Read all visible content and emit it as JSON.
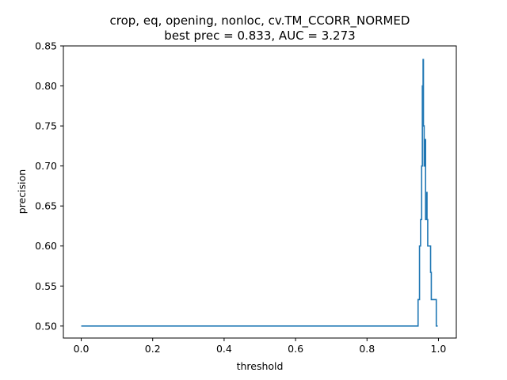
{
  "chart_data": {
    "type": "line",
    "title_lines": [
      "crop, eq, opening, nonloc, cv.TM_CCORR_NORMED",
      "best prec = 0.833, AUC = 3.273"
    ],
    "xlabel": "threshold",
    "ylabel": "precision",
    "xlim": [
      -0.05,
      1.05
    ],
    "ylim": [
      0.485,
      0.85
    ],
    "xticks": [
      0.0,
      0.2,
      0.4,
      0.6,
      0.8,
      1.0
    ],
    "xtick_labels": [
      "0.0",
      "0.2",
      "0.4",
      "0.6",
      "0.8",
      "1.0"
    ],
    "yticks": [
      0.5,
      0.55,
      0.6,
      0.65,
      0.7,
      0.75,
      0.8,
      0.85
    ],
    "ytick_labels": [
      "0.50",
      "0.55",
      "0.60",
      "0.65",
      "0.70",
      "0.75",
      "0.80",
      "0.85"
    ],
    "grid": false,
    "line_color": "#1f77b4",
    "series": [
      {
        "x": [
          0.0,
          0.943,
          0.943,
          0.947,
          0.947,
          0.95,
          0.95,
          0.953,
          0.953,
          0.955,
          0.955,
          0.957,
          0.957,
          0.958,
          0.958,
          0.96,
          0.96,
          0.962,
          0.962,
          0.964,
          0.964,
          0.966,
          0.966,
          0.968,
          0.968,
          0.97,
          0.97,
          0.974,
          0.974,
          0.978,
          0.978,
          0.98,
          0.98,
          0.982,
          0.982,
          0.99,
          0.99,
          0.994,
          0.994,
          0.998
        ],
        "y": [
          0.5,
          0.5,
          0.533,
          0.533,
          0.6,
          0.6,
          0.633,
          0.633,
          0.7,
          0.7,
          0.8,
          0.8,
          0.833,
          0.833,
          0.75,
          0.75,
          0.7,
          0.7,
          0.733,
          0.733,
          0.633,
          0.633,
          0.667,
          0.667,
          0.633,
          0.633,
          0.6,
          0.6,
          0.6,
          0.6,
          0.567,
          0.567,
          0.533,
          0.533,
          0.533,
          0.533,
          0.533,
          0.533,
          0.5,
          0.5
        ]
      }
    ]
  }
}
